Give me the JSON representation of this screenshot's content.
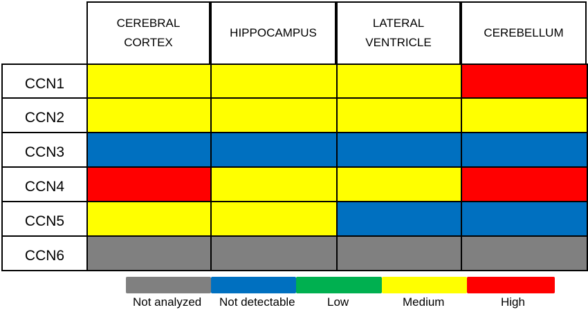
{
  "chart_data": {
    "type": "heatmap",
    "columns": [
      "CEREBRAL\nCORTEX",
      "HIPPOCAMPUS",
      "LATERAL\nVENTRICLE",
      "CEREBELLUM"
    ],
    "rows": [
      "CCN1",
      "CCN2",
      "CCN3",
      "CCN4",
      "CCN5",
      "CCN6"
    ],
    "levels": [
      "Not analyzed",
      "Not detectable",
      "Low",
      "Medium",
      "High"
    ],
    "level_colors": {
      "Not analyzed": "#808080",
      "Not detectable": "#0070C0",
      "Low": "#00B050",
      "Medium": "#FFFF00",
      "High": "#FF0000"
    },
    "values": [
      [
        "Medium",
        "Medium",
        "Medium",
        "High"
      ],
      [
        "Medium",
        "Medium",
        "Medium",
        "Medium"
      ],
      [
        "Not detectable",
        "Not detectable",
        "Not detectable",
        "Not detectable"
      ],
      [
        "High",
        "Medium",
        "Medium",
        "High"
      ],
      [
        "Medium",
        "Medium",
        "Not detectable",
        "Not detectable"
      ],
      [
        "Not analyzed",
        "Not analyzed",
        "Not analyzed",
        "Not analyzed"
      ]
    ],
    "legend_placement": "bottom"
  }
}
